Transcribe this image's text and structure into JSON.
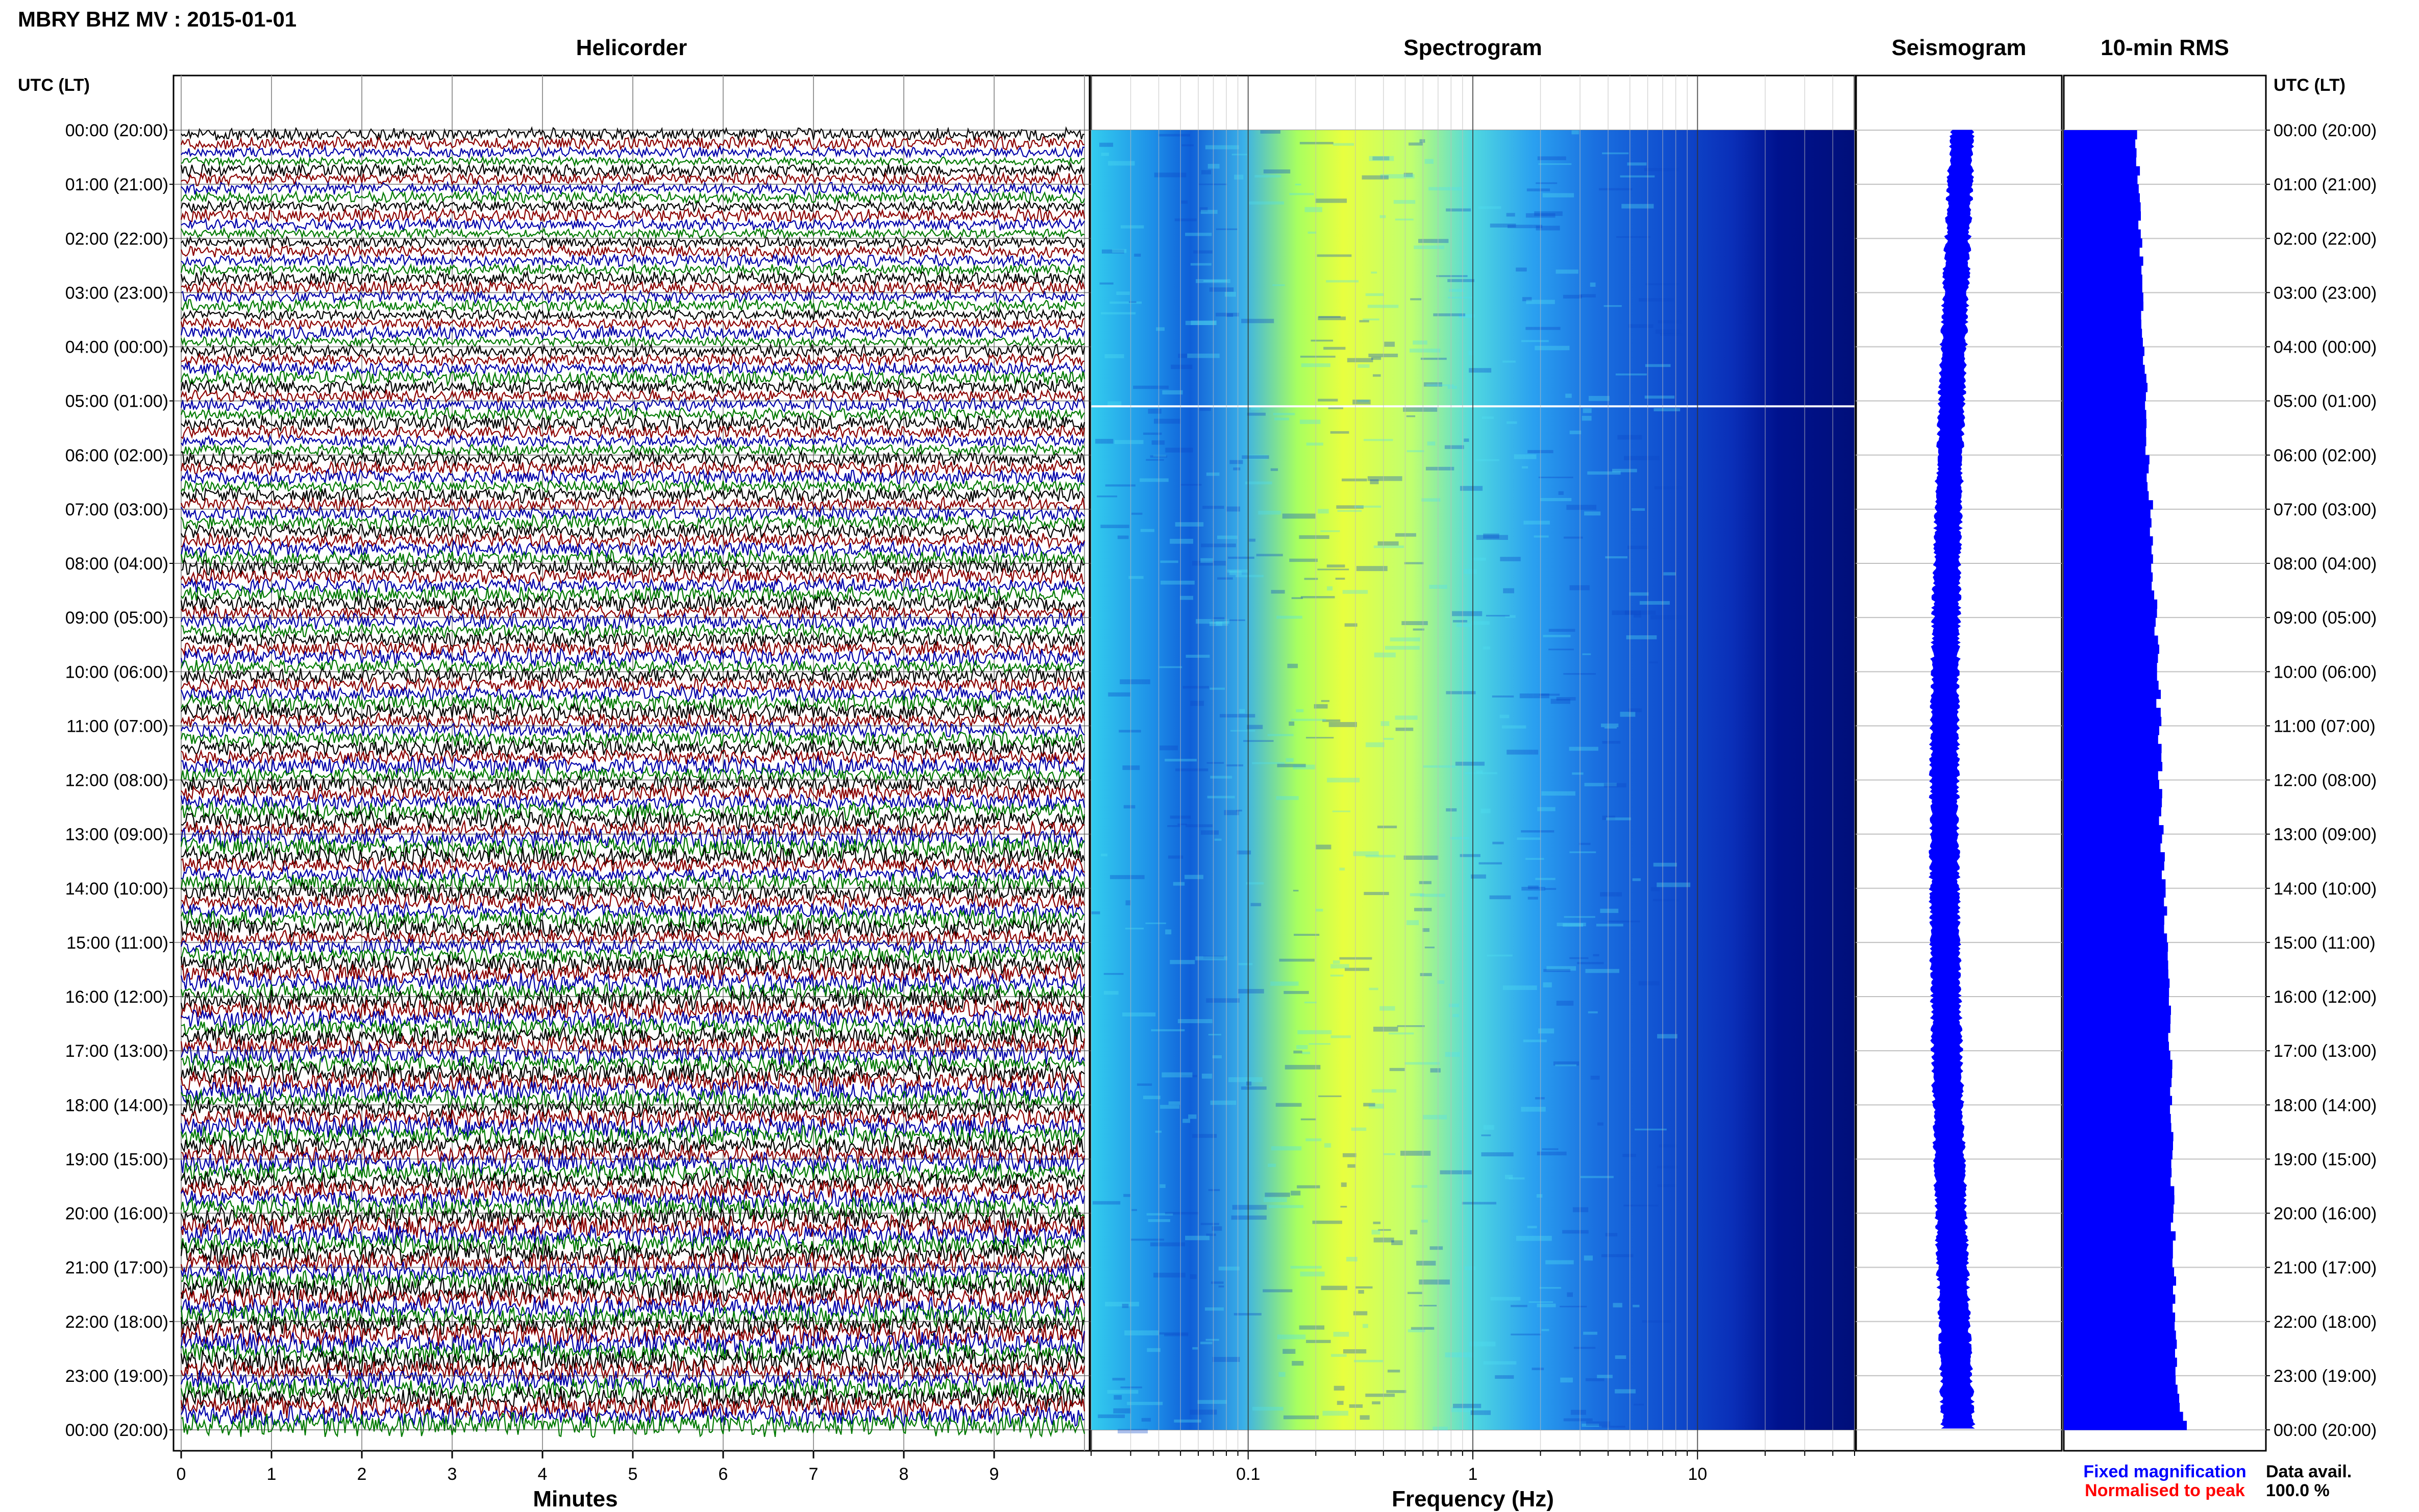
{
  "title": "MBRY BHZ MV : 2015-01-01",
  "utc_label_left": "UTC (LT)",
  "utc_label_right": "UTC (LT)",
  "footer": {
    "fixed_magnification": "Fixed magnification",
    "normalised_to_peak": "Normalised to peak",
    "data_avail_label": "Data avail.",
    "data_avail_value": "100.0 %"
  },
  "colors": {
    "trace_cycle": [
      "#000000",
      "#8b0000",
      "#0000aa",
      "#007a00"
    ],
    "fixed_magnification": "#0000ff",
    "normalised_to_peak": "#ff0000",
    "rms_fill": "#0000ff",
    "seismogram": "#0000ff"
  },
  "time_labels": [
    "00:00 (20:00)",
    "01:00 (21:00)",
    "02:00 (22:00)",
    "03:00 (23:00)",
    "04:00 (00:00)",
    "05:00 (01:00)",
    "06:00 (02:00)",
    "07:00 (03:00)",
    "08:00 (04:00)",
    "09:00 (05:00)",
    "10:00 (06:00)",
    "11:00 (07:00)",
    "12:00 (08:00)",
    "13:00 (09:00)",
    "14:00 (10:00)",
    "15:00 (11:00)",
    "16:00 (12:00)",
    "17:00 (13:00)",
    "18:00 (14:00)",
    "19:00 (15:00)",
    "20:00 (16:00)",
    "21:00 (17:00)",
    "22:00 (18:00)",
    "23:00 (19:00)",
    "00:00 (20:00)"
  ],
  "chart_data": [
    {
      "type": "line",
      "title": "Helicorder",
      "xlabel": "Minutes",
      "x_ticks": [
        "0",
        "1",
        "2",
        "3",
        "4",
        "5",
        "6",
        "7",
        "8",
        "9"
      ],
      "xlim": [
        0,
        10
      ],
      "rows": 144,
      "row_minutes": 10
    },
    {
      "type": "heatmap",
      "title": "Spectrogram",
      "xlabel": "Frequency (Hz)",
      "x_scale": "log",
      "x_ticks": [
        "0.1",
        "1",
        "10"
      ],
      "xlim": [
        0.02,
        50
      ]
    },
    {
      "type": "line",
      "title": "Seismogram"
    },
    {
      "type": "bar",
      "title": "10-min RMS",
      "relative_values_by_hour": [
        0.6,
        0.62,
        0.63,
        0.64,
        0.66,
        0.67,
        0.68,
        0.72,
        0.73,
        0.75,
        0.77,
        0.78,
        0.79,
        0.8,
        0.82,
        0.84,
        0.86,
        0.87,
        0.88,
        0.88,
        0.89,
        0.9,
        0.91,
        0.92,
        1.0
      ]
    }
  ]
}
